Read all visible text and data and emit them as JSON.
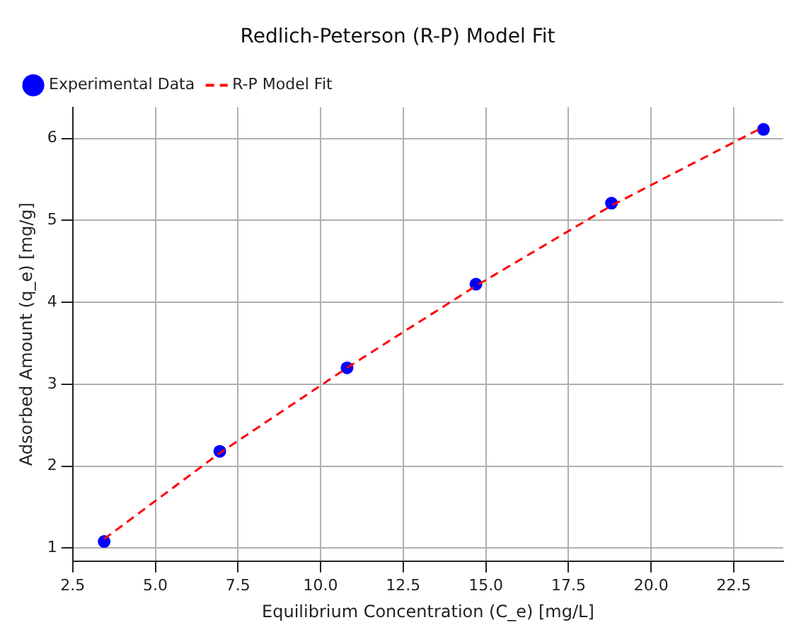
{
  "chart_data": {
    "type": "scatter",
    "title": "Redlich-Peterson (R-P) Model Fit",
    "xlabel": "Equilibrium Concentration (C_e) [mg/L]",
    "ylabel": "Adsorbed Amount (q_e) [mg/g]",
    "x": [
      3.45,
      6.95,
      10.8,
      14.7,
      18.8,
      23.4
    ],
    "series": [
      {
        "name": "Experimental Data",
        "color": "#0000ff",
        "marker": "circle",
        "values": [
          1.08,
          2.18,
          3.2,
          4.22,
          5.21,
          6.11
        ]
      },
      {
        "name": "R-P Model Fit",
        "type": "line",
        "color": "#ff0000",
        "marker": "none",
        "line_style": "dashed",
        "values": [
          1.11,
          2.16,
          3.2,
          4.2,
          5.18,
          6.14
        ]
      }
    ],
    "xlim": [
      2.5,
      24.0
    ],
    "xticks": [
      {
        "value": 2.5,
        "label": "2.5"
      },
      {
        "value": 5,
        "label": "5.0"
      },
      {
        "value": 7.5,
        "label": "7.5"
      },
      {
        "value": 10,
        "label": "10.0"
      },
      {
        "value": 12.5,
        "label": "12.5"
      },
      {
        "value": 15,
        "label": "15.0"
      },
      {
        "value": 17.5,
        "label": "17.5"
      },
      {
        "value": 20,
        "label": "20.0"
      },
      {
        "value": 22.5,
        "label": "22.5"
      }
    ],
    "ylim": [
      0.84,
      6.38
    ],
    "yticks": [
      1,
      2,
      3,
      4,
      5,
      6
    ],
    "grid": true,
    "legend": "top left"
  }
}
